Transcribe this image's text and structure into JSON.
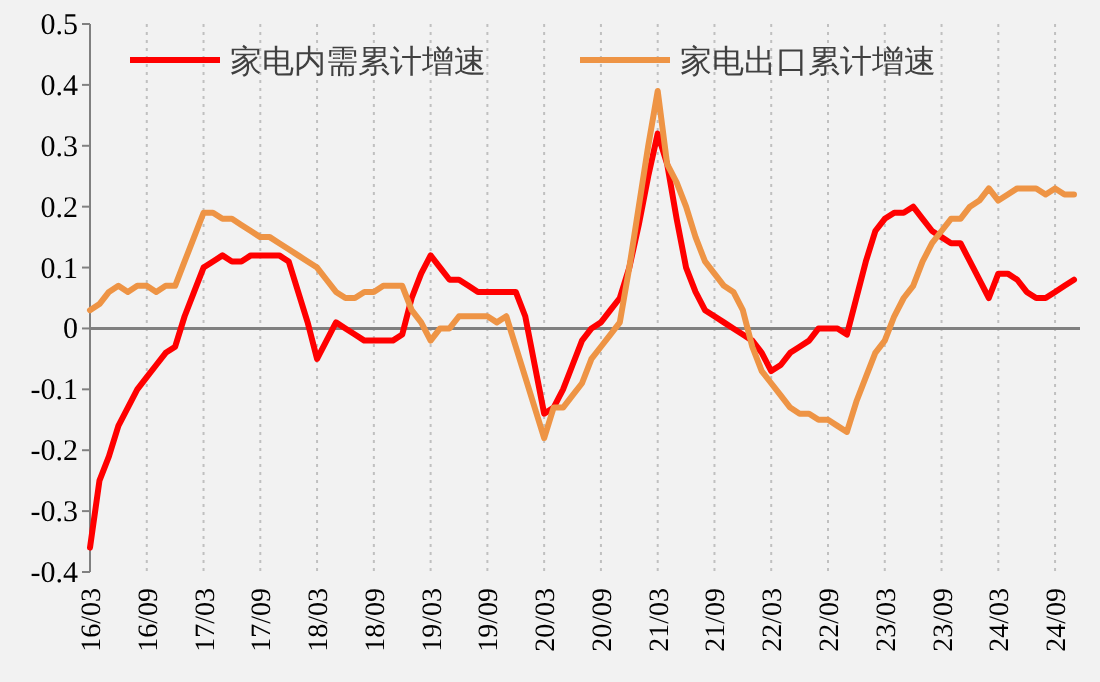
{
  "chart_data": {
    "type": "line",
    "categories": [
      "16/03",
      null,
      null,
      null,
      null,
      null,
      "16/09",
      null,
      null,
      null,
      null,
      null,
      "17/03",
      null,
      null,
      null,
      null,
      null,
      "17/09",
      null,
      null,
      null,
      null,
      null,
      "18/03",
      null,
      null,
      null,
      null,
      null,
      "18/09",
      null,
      null,
      null,
      null,
      null,
      "19/03",
      null,
      null,
      null,
      null,
      null,
      "19/09",
      null,
      null,
      null,
      null,
      null,
      "20/03",
      null,
      null,
      null,
      null,
      null,
      "20/09",
      null,
      null,
      null,
      null,
      null,
      "21/03",
      null,
      null,
      null,
      null,
      null,
      "21/09",
      null,
      null,
      null,
      null,
      null,
      "22/03",
      null,
      null,
      null,
      null,
      null,
      "22/09",
      null,
      null,
      null,
      null,
      null,
      "23/03",
      null,
      null,
      null,
      null,
      null,
      "23/09",
      null,
      null,
      null,
      null,
      null,
      "24/03",
      null,
      null,
      null,
      null,
      null,
      "24/09",
      null,
      null
    ],
    "series": [
      {
        "name": "家电内需累计增速",
        "color": "#ff0000",
        "values": [
          -0.36,
          -0.25,
          -0.21,
          -0.16,
          -0.13,
          -0.1,
          -0.08,
          -0.06,
          -0.04,
          -0.03,
          0.02,
          0.06,
          0.1,
          0.11,
          0.12,
          0.11,
          0.11,
          0.12,
          0.12,
          0.12,
          0.12,
          0.11,
          0.06,
          0.01,
          -0.05,
          -0.02,
          0.01,
          0,
          -0.01,
          -0.02,
          -0.02,
          -0.02,
          -0.02,
          -0.01,
          0.05,
          0.09,
          0.12,
          0.1,
          0.08,
          0.08,
          0.07,
          0.06,
          0.06,
          0.06,
          0.06,
          0.06,
          0.02,
          -0.06,
          -0.14,
          -0.13,
          -0.1,
          -0.06,
          -0.02,
          0,
          0.01,
          0.03,
          0.05,
          0.1,
          0.17,
          0.25,
          0.32,
          0.27,
          0.18,
          0.1,
          0.06,
          0.03,
          0.02,
          0.01,
          0,
          -0.01,
          -0.02,
          -0.04,
          -0.07,
          -0.06,
          -0.04,
          -0.03,
          -0.02,
          0,
          0,
          0,
          -0.01,
          0.05,
          0.11,
          0.16,
          0.18,
          0.19,
          0.19,
          0.2,
          0.18,
          0.16,
          0.15,
          0.14,
          0.14,
          0.11,
          0.08,
          0.05,
          0.09,
          0.09,
          0.08,
          0.06,
          0.05,
          0.05,
          0.06,
          0.07,
          0.08
        ]
      },
      {
        "name": "家电出口累计增速",
        "color": "#ee9445",
        "values": [
          0.03,
          0.04,
          0.06,
          0.07,
          0.06,
          0.07,
          0.07,
          0.06,
          0.07,
          0.07,
          0.11,
          0.15,
          0.19,
          0.19,
          0.18,
          0.18,
          0.17,
          0.16,
          0.15,
          0.15,
          0.14,
          0.13,
          0.12,
          0.11,
          0.1,
          0.08,
          0.06,
          0.05,
          0.05,
          0.06,
          0.06,
          0.07,
          0.07,
          0.07,
          0.03,
          0.01,
          -0.02,
          0,
          0,
          0.02,
          0.02,
          0.02,
          0.02,
          0.01,
          0.02,
          -0.03,
          -0.08,
          -0.13,
          -0.18,
          -0.13,
          -0.13,
          -0.11,
          -0.09,
          -0.05,
          -0.03,
          -0.01,
          0.01,
          0.1,
          0.2,
          0.3,
          0.39,
          0.27,
          0.24,
          0.2,
          0.15,
          0.11,
          0.09,
          0.07,
          0.06,
          0.03,
          -0.03,
          -0.07,
          -0.09,
          -0.11,
          -0.13,
          -0.14,
          -0.14,
          -0.15,
          -0.15,
          -0.16,
          -0.17,
          -0.12,
          -0.08,
          -0.04,
          -0.02,
          0.02,
          0.05,
          0.07,
          0.11,
          0.14,
          0.16,
          0.18,
          0.18,
          0.2,
          0.21,
          0.23,
          0.21,
          0.22,
          0.23,
          0.23,
          0.23,
          0.22,
          0.23,
          0.22,
          0.22
        ]
      }
    ],
    "ylim": [
      -0.4,
      0.5
    ],
    "yticks": [
      -0.4,
      -0.3,
      -0.2,
      -0.1,
      0,
      0.1,
      0.2,
      0.3,
      0.4,
      0.5
    ],
    "grid": "x",
    "legend": "top",
    "marker": "none",
    "line_style": "solid"
  }
}
